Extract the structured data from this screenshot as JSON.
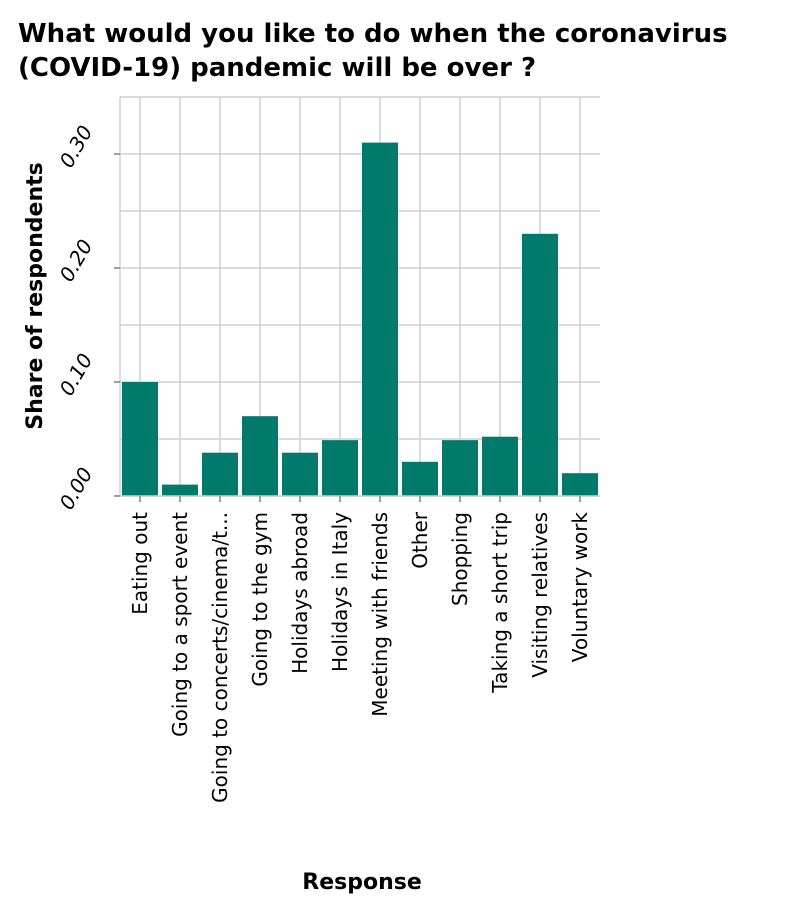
{
  "chart_data": {
    "type": "bar",
    "title_lines": [
      "What would you like to do when the coronavirus",
      "(COVID-19) pandemic will be over ?"
    ],
    "xlabel": "Response",
    "ylabel": "Share of respondents",
    "categories": [
      "Eating out",
      "Going to a sport event",
      "Going to concerts/cinema/t...",
      "Going to the gym",
      "Holidays abroad",
      "Holidays in Italy",
      "Meeting with friends",
      "Other",
      "Shopping",
      "Taking a short trip",
      "Visiting relatives",
      "Voluntary work"
    ],
    "values": [
      0.1,
      0.01,
      0.038,
      0.07,
      0.038,
      0.049,
      0.31,
      0.03,
      0.049,
      0.052,
      0.23,
      0.02
    ],
    "ylim": [
      0,
      0.35
    ],
    "yticks": [
      0.0,
      0.1,
      0.2,
      0.3
    ],
    "ytick_labels": [
      "0.00",
      "0.10",
      "0.20",
      "0.30"
    ],
    "grid": true,
    "bar_color": "#007a6a",
    "grid_color": "#d0d0d0"
  }
}
